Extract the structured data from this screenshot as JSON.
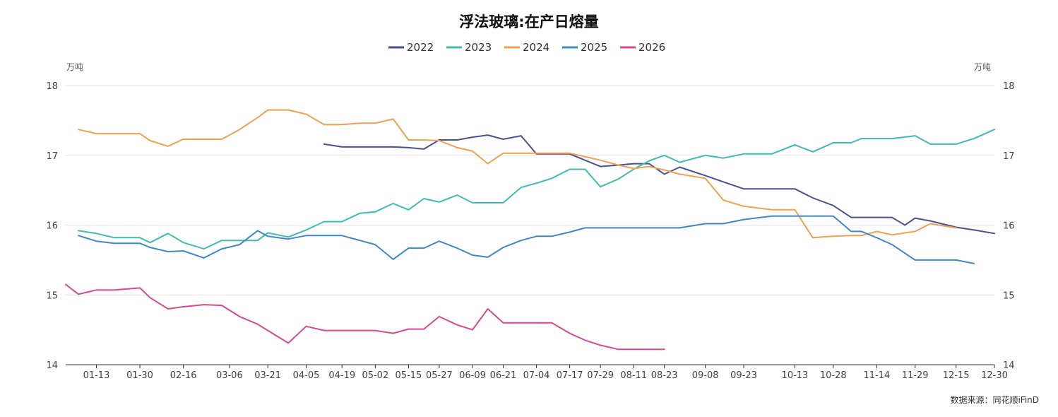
{
  "chart_data": {
    "type": "line",
    "title": "浮法玻璃:在产日熔量",
    "ylabel_left": "万吨",
    "ylabel_right": "万吨",
    "ylim": [
      14,
      18
    ],
    "yticks": [
      14,
      15,
      16,
      17,
      18
    ],
    "x_ticks": [
      "01-13",
      "01-30",
      "02-16",
      "03-06",
      "03-21",
      "04-05",
      "04-19",
      "05-02",
      "05-15",
      "05-27",
      "06-09",
      "06-21",
      "07-04",
      "07-17",
      "07-29",
      "08-11",
      "08-23",
      "09-08",
      "09-23",
      "10-13",
      "10-28",
      "11-14",
      "11-29",
      "12-15",
      "12-30"
    ],
    "x_domain_note": "day-of-year",
    "legend_position": "top-center",
    "source": "数据来源：同花顺iFinD",
    "series": [
      {
        "name": "2022",
        "color": "#4a5190",
        "points": [
          [
            "04-12",
            17.16
          ],
          [
            "04-19",
            17.12
          ],
          [
            "04-26",
            17.12
          ],
          [
            "05-02",
            17.12
          ],
          [
            "05-09",
            17.12
          ],
          [
            "05-15",
            17.11
          ],
          [
            "05-21",
            17.09
          ],
          [
            "05-27",
            17.22
          ],
          [
            "06-03",
            17.22
          ],
          [
            "06-09",
            17.26
          ],
          [
            "06-15",
            17.29
          ],
          [
            "06-21",
            17.23
          ],
          [
            "06-28",
            17.28
          ],
          [
            "07-04",
            17.02
          ],
          [
            "07-10",
            17.02
          ],
          [
            "07-17",
            17.02
          ],
          [
            "07-23",
            16.93
          ],
          [
            "07-29",
            16.84
          ],
          [
            "08-05",
            16.86
          ],
          [
            "08-11",
            16.88
          ],
          [
            "08-17",
            16.88
          ],
          [
            "08-23",
            16.73
          ],
          [
            "08-29",
            16.83
          ],
          [
            "09-08",
            16.71
          ],
          [
            "09-15",
            16.62
          ],
          [
            "09-23",
            16.52
          ],
          [
            "10-04",
            16.52
          ],
          [
            "10-13",
            16.52
          ],
          [
            "10-20",
            16.39
          ],
          [
            "10-28",
            16.28
          ],
          [
            "11-04",
            16.11
          ],
          [
            "11-08",
            16.11
          ],
          [
            "11-14",
            16.11
          ],
          [
            "11-20",
            16.11
          ],
          [
            "11-25",
            16.0
          ],
          [
            "11-29",
            16.1
          ],
          [
            "12-05",
            16.06
          ],
          [
            "12-15",
            15.97
          ],
          [
            "12-22",
            15.93
          ],
          [
            "12-30",
            15.88
          ]
        ]
      },
      {
        "name": "2023",
        "color": "#3fbcb0",
        "points": [
          [
            "01-06",
            15.92
          ],
          [
            "01-13",
            15.88
          ],
          [
            "01-20",
            15.82
          ],
          [
            "01-30",
            15.82
          ],
          [
            "02-03",
            15.75
          ],
          [
            "02-10",
            15.88
          ],
          [
            "02-16",
            15.75
          ],
          [
            "02-24",
            15.66
          ],
          [
            "03-03",
            15.78
          ],
          [
            "03-10",
            15.78
          ],
          [
            "03-17",
            15.78
          ],
          [
            "03-21",
            15.89
          ],
          [
            "03-29",
            15.83
          ],
          [
            "04-05",
            15.93
          ],
          [
            "04-12",
            16.05
          ],
          [
            "04-19",
            16.05
          ],
          [
            "04-26",
            16.17
          ],
          [
            "05-02",
            16.19
          ],
          [
            "05-09",
            16.31
          ],
          [
            "05-15",
            16.22
          ],
          [
            "05-21",
            16.38
          ],
          [
            "05-27",
            16.33
          ],
          [
            "06-03",
            16.43
          ],
          [
            "06-09",
            16.32
          ],
          [
            "06-15",
            16.32
          ],
          [
            "06-21",
            16.32
          ],
          [
            "06-28",
            16.54
          ],
          [
            "07-04",
            16.6
          ],
          [
            "07-10",
            16.67
          ],
          [
            "07-17",
            16.8
          ],
          [
            "07-23",
            16.8
          ],
          [
            "07-29",
            16.55
          ],
          [
            "08-05",
            16.66
          ],
          [
            "08-11",
            16.8
          ],
          [
            "08-17",
            16.92
          ],
          [
            "08-23",
            17.0
          ],
          [
            "08-29",
            16.9
          ],
          [
            "09-08",
            17.0
          ],
          [
            "09-15",
            16.96
          ],
          [
            "09-23",
            17.02
          ],
          [
            "10-04",
            17.02
          ],
          [
            "10-13",
            17.15
          ],
          [
            "10-20",
            17.05
          ],
          [
            "10-28",
            17.18
          ],
          [
            "11-04",
            17.18
          ],
          [
            "11-08",
            17.24
          ],
          [
            "11-14",
            17.24
          ],
          [
            "11-20",
            17.24
          ],
          [
            "11-29",
            17.28
          ],
          [
            "12-05",
            17.16
          ],
          [
            "12-15",
            17.16
          ],
          [
            "12-22",
            17.24
          ],
          [
            "12-30",
            17.37
          ]
        ]
      },
      {
        "name": "2024",
        "color": "#f0a050",
        "points": [
          [
            "01-06",
            17.37
          ],
          [
            "01-13",
            17.31
          ],
          [
            "01-20",
            17.31
          ],
          [
            "01-30",
            17.31
          ],
          [
            "02-03",
            17.21
          ],
          [
            "02-10",
            17.13
          ],
          [
            "02-16",
            17.23
          ],
          [
            "02-24",
            17.23
          ],
          [
            "03-03",
            17.23
          ],
          [
            "03-10",
            17.37
          ],
          [
            "03-17",
            17.54
          ],
          [
            "03-21",
            17.65
          ],
          [
            "03-29",
            17.65
          ],
          [
            "04-05",
            17.59
          ],
          [
            "04-12",
            17.44
          ],
          [
            "04-19",
            17.44
          ],
          [
            "04-26",
            17.46
          ],
          [
            "05-02",
            17.46
          ],
          [
            "05-09",
            17.52
          ],
          [
            "05-15",
            17.22
          ],
          [
            "05-21",
            17.22
          ],
          [
            "05-27",
            17.21
          ],
          [
            "06-03",
            17.11
          ],
          [
            "06-09",
            17.06
          ],
          [
            "06-15",
            16.88
          ],
          [
            "06-21",
            17.03
          ],
          [
            "06-28",
            17.03
          ],
          [
            "07-04",
            17.03
          ],
          [
            "07-10",
            17.03
          ],
          [
            "07-17",
            17.03
          ],
          [
            "07-23",
            16.98
          ],
          [
            "07-29",
            16.93
          ],
          [
            "08-05",
            16.86
          ],
          [
            "08-11",
            16.81
          ],
          [
            "08-17",
            16.84
          ],
          [
            "08-23",
            16.79
          ],
          [
            "08-29",
            16.73
          ],
          [
            "09-08",
            16.67
          ],
          [
            "09-15",
            16.36
          ],
          [
            "09-23",
            16.27
          ],
          [
            "10-04",
            16.22
          ],
          [
            "10-13",
            16.22
          ],
          [
            "10-20",
            15.82
          ],
          [
            "10-28",
            15.84
          ],
          [
            "11-04",
            15.85
          ],
          [
            "11-08",
            15.85
          ],
          [
            "11-14",
            15.91
          ],
          [
            "11-20",
            15.86
          ],
          [
            "11-29",
            15.91
          ],
          [
            "12-05",
            16.02
          ],
          [
            "12-15",
            15.96
          ]
        ]
      },
      {
        "name": "2025",
        "color": "#3f88c8",
        "points": [
          [
            "01-06",
            15.85
          ],
          [
            "01-13",
            15.77
          ],
          [
            "01-20",
            15.74
          ],
          [
            "01-30",
            15.74
          ],
          [
            "02-03",
            15.68
          ],
          [
            "02-10",
            15.62
          ],
          [
            "02-16",
            15.63
          ],
          [
            "02-24",
            15.53
          ],
          [
            "03-03",
            15.66
          ],
          [
            "03-10",
            15.72
          ],
          [
            "03-17",
            15.92
          ],
          [
            "03-21",
            15.84
          ],
          [
            "03-29",
            15.8
          ],
          [
            "04-05",
            15.85
          ],
          [
            "04-12",
            15.85
          ],
          [
            "04-19",
            15.85
          ],
          [
            "04-26",
            15.78
          ],
          [
            "05-02",
            15.72
          ],
          [
            "05-09",
            15.51
          ],
          [
            "05-15",
            15.67
          ],
          [
            "05-21",
            15.67
          ],
          [
            "05-27",
            15.77
          ],
          [
            "06-03",
            15.67
          ],
          [
            "06-09",
            15.57
          ],
          [
            "06-15",
            15.54
          ],
          [
            "06-21",
            15.68
          ],
          [
            "06-28",
            15.78
          ],
          [
            "07-04",
            15.84
          ],
          [
            "07-10",
            15.84
          ],
          [
            "07-17",
            15.9
          ],
          [
            "07-23",
            15.96
          ],
          [
            "07-29",
            15.96
          ],
          [
            "08-05",
            15.96
          ],
          [
            "08-11",
            15.96
          ],
          [
            "08-17",
            15.96
          ],
          [
            "08-23",
            15.96
          ],
          [
            "08-29",
            15.96
          ],
          [
            "09-08",
            16.02
          ],
          [
            "09-15",
            16.02
          ],
          [
            "09-23",
            16.08
          ],
          [
            "10-04",
            16.13
          ],
          [
            "10-13",
            16.13
          ],
          [
            "10-20",
            16.13
          ],
          [
            "10-28",
            16.13
          ],
          [
            "11-04",
            15.91
          ],
          [
            "11-08",
            15.91
          ],
          [
            "11-14",
            15.82
          ],
          [
            "11-20",
            15.72
          ],
          [
            "11-29",
            15.5
          ],
          [
            "12-05",
            15.5
          ],
          [
            "12-15",
            15.5
          ],
          [
            "12-22",
            15.45
          ]
        ]
      },
      {
        "name": "2026",
        "color": "#d9498f",
        "points": [
          [
            "01-01",
            15.15
          ],
          [
            "01-06",
            15.01
          ],
          [
            "01-13",
            15.07
          ],
          [
            "01-20",
            15.07
          ],
          [
            "01-30",
            15.1
          ],
          [
            "02-03",
            14.96
          ],
          [
            "02-10",
            14.8
          ],
          [
            "02-16",
            14.83
          ],
          [
            "02-24",
            14.86
          ],
          [
            "03-03",
            14.85
          ],
          [
            "03-10",
            14.69
          ],
          [
            "03-17",
            14.58
          ],
          [
            "03-21",
            14.49
          ],
          [
            "03-29",
            14.31
          ],
          [
            "04-05",
            14.55
          ],
          [
            "04-12",
            14.49
          ],
          [
            "04-19",
            14.49
          ],
          [
            "04-26",
            14.49
          ],
          [
            "05-02",
            14.49
          ],
          [
            "05-09",
            14.45
          ],
          [
            "05-15",
            14.51
          ],
          [
            "05-21",
            14.51
          ],
          [
            "05-27",
            14.69
          ],
          [
            "06-03",
            14.57
          ],
          [
            "06-09",
            14.5
          ],
          [
            "06-15",
            14.8
          ],
          [
            "06-21",
            14.6
          ],
          [
            "06-28",
            14.6
          ],
          [
            "07-04",
            14.6
          ],
          [
            "07-10",
            14.6
          ],
          [
            "07-17",
            14.45
          ],
          [
            "07-23",
            14.35
          ],
          [
            "07-29",
            14.28
          ],
          [
            "08-05",
            14.22
          ],
          [
            "08-11",
            14.22
          ],
          [
            "08-17",
            14.22
          ],
          [
            "08-23",
            14.22
          ]
        ]
      }
    ]
  }
}
